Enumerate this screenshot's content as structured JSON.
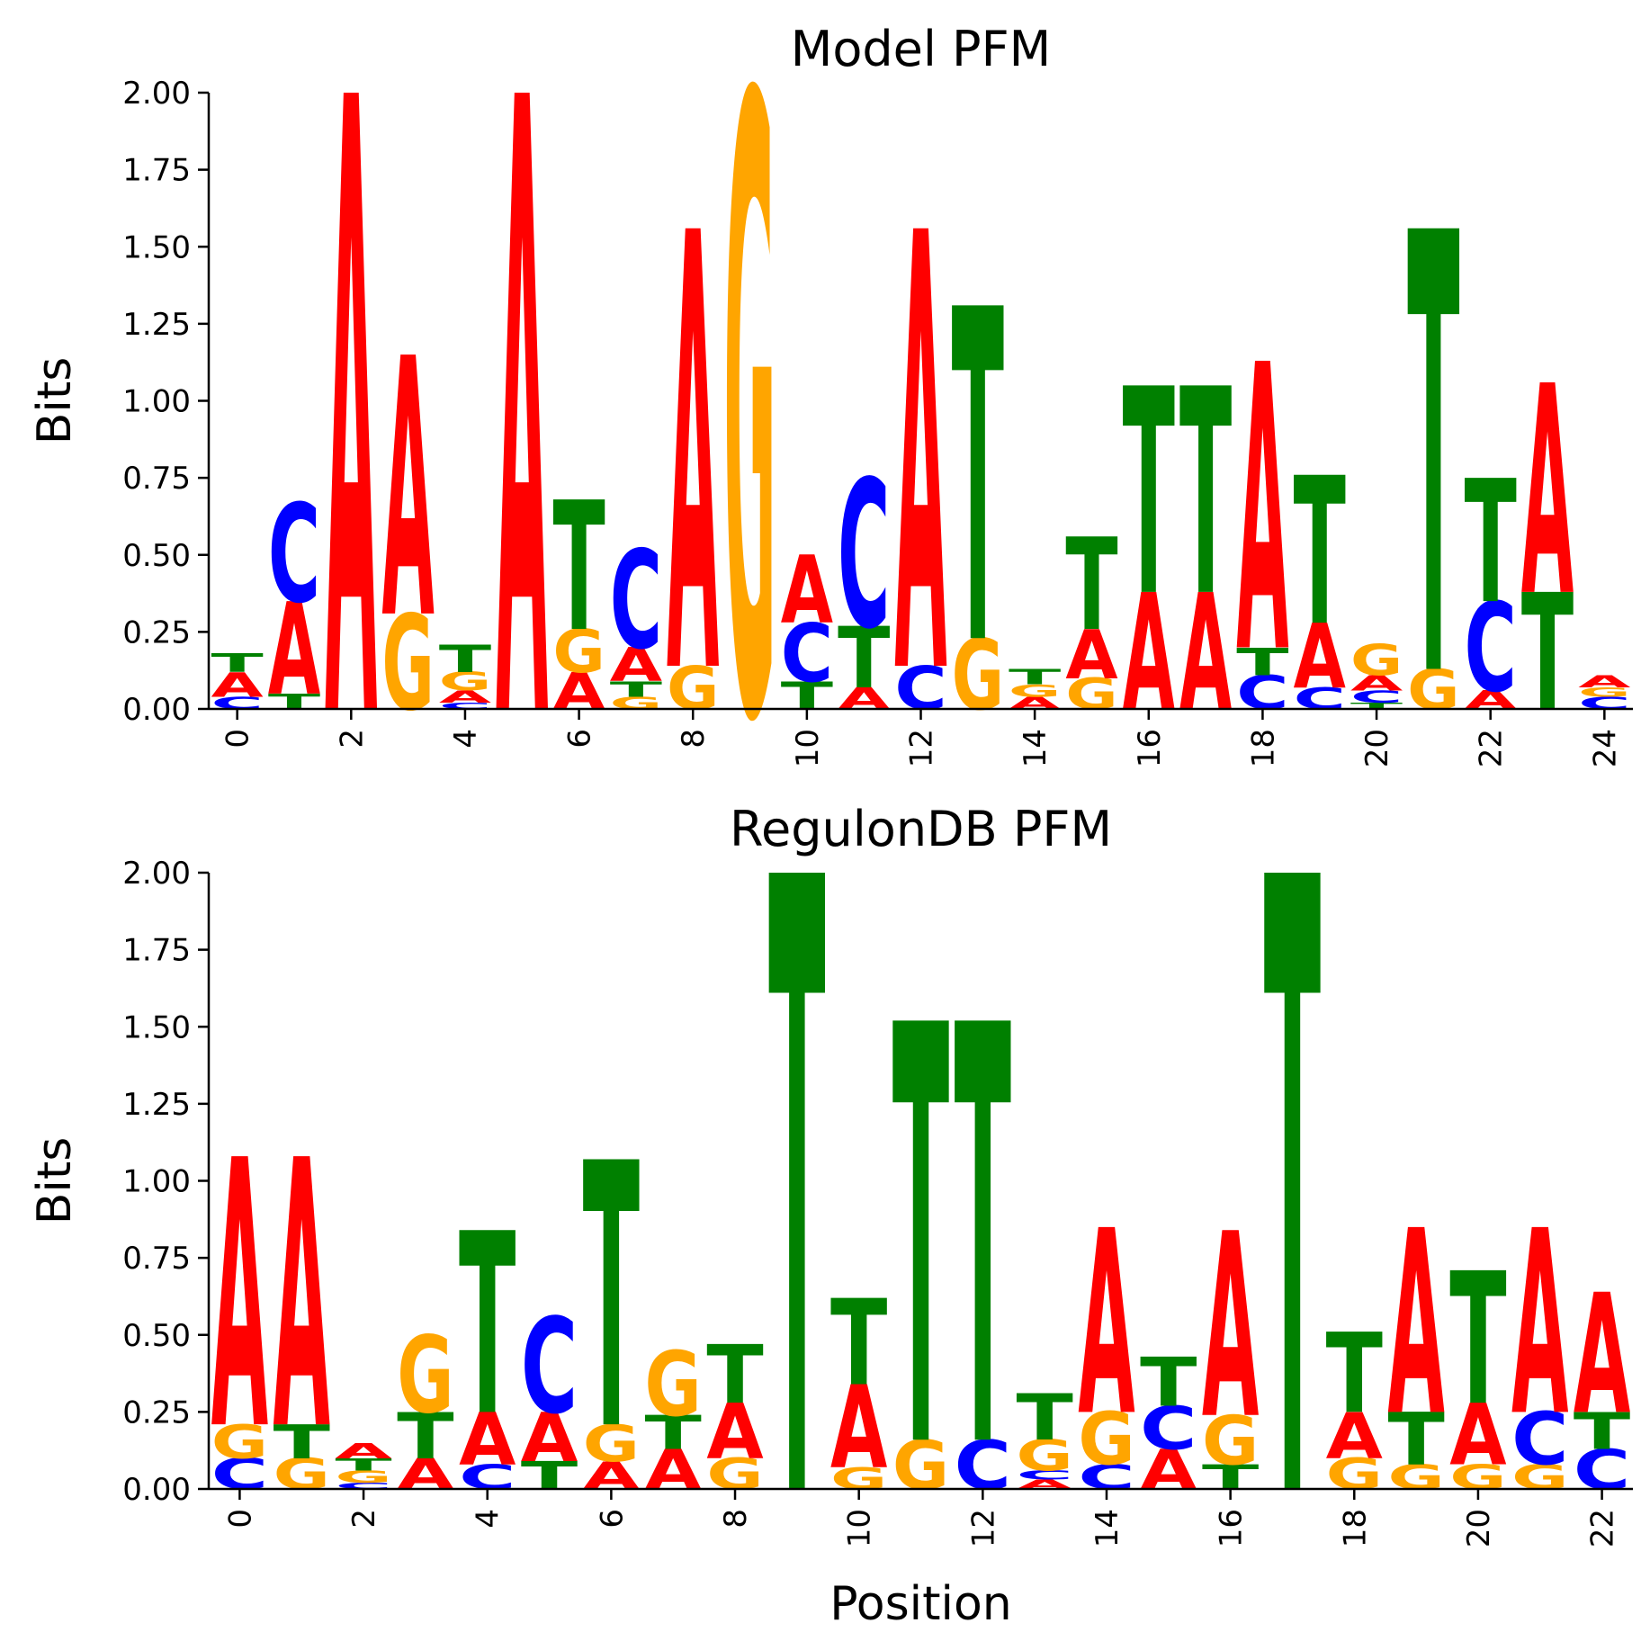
{
  "colors": {
    "A": "#ff0000",
    "C": "#0000ff",
    "G": "#ffa500",
    "T": "#008000"
  },
  "chart_data": [
    {
      "type": "sequence-logo",
      "title": "Model PFM",
      "xlabel": "",
      "ylabel": "Bits",
      "ylim": [
        0,
        2
      ],
      "yticks": [
        "0.00",
        "0.25",
        "0.50",
        "0.75",
        "1.00",
        "1.25",
        "1.50",
        "1.75",
        "2.00"
      ],
      "xticks": [
        "0",
        "2",
        "4",
        "6",
        "8",
        "10",
        "12",
        "14",
        "16",
        "18",
        "20",
        "22",
        "24"
      ],
      "xlim": [
        -0.5,
        24.5
      ],
      "positions": [
        [
          [
            "C",
            0.04
          ],
          [
            "A",
            0.08
          ],
          [
            "T",
            0.06
          ]
        ],
        [
          [
            "T",
            0.05
          ],
          [
            "A",
            0.3
          ],
          [
            "C",
            0.32
          ]
        ],
        [
          [
            "A",
            2.0
          ]
        ],
        [
          [
            "G",
            0.31
          ],
          [
            "A",
            0.84
          ]
        ],
        [
          [
            "C",
            0.02
          ],
          [
            "A",
            0.04
          ],
          [
            "G",
            0.06
          ],
          [
            "T",
            0.09
          ]
        ],
        [
          [
            "A",
            2.0
          ]
        ],
        [
          [
            "A",
            0.12
          ],
          [
            "G",
            0.14
          ],
          [
            "T",
            0.42
          ]
        ],
        [
          [
            "G",
            0.04
          ],
          [
            "T",
            0.05
          ],
          [
            "A",
            0.11
          ],
          [
            "C",
            0.32
          ]
        ],
        [
          [
            "G",
            0.14
          ],
          [
            "A",
            1.42
          ]
        ],
        [
          [
            "G",
            2.0
          ]
        ],
        [
          [
            "T",
            0.09
          ],
          [
            "C",
            0.19
          ],
          [
            "A",
            0.22
          ]
        ],
        [
          [
            "A",
            0.07
          ],
          [
            "T",
            0.2
          ],
          [
            "C",
            0.48
          ]
        ],
        [
          [
            "C",
            0.14
          ],
          [
            "A",
            1.42
          ]
        ],
        [
          [
            "G",
            0.23
          ],
          [
            "T",
            1.08
          ]
        ],
        [
          [
            "A",
            0.04
          ],
          [
            "G",
            0.04
          ],
          [
            "T",
            0.05
          ]
        ],
        [
          [
            "G",
            0.1
          ],
          [
            "A",
            0.16
          ],
          [
            "T",
            0.3
          ]
        ],
        [
          [
            "A",
            0.38
          ],
          [
            "T",
            0.67
          ]
        ],
        [
          [
            "A",
            0.38
          ],
          [
            "T",
            0.67
          ]
        ],
        [
          [
            "C",
            0.11
          ],
          [
            "T",
            0.09
          ],
          [
            "A",
            0.93
          ]
        ],
        [
          [
            "C",
            0.07
          ],
          [
            "A",
            0.21
          ],
          [
            "T",
            0.48
          ]
        ],
        [
          [
            "T",
            0.02
          ],
          [
            "C",
            0.04
          ],
          [
            "A",
            0.05
          ],
          [
            "G",
            0.1
          ]
        ],
        [
          [
            "G",
            0.13
          ],
          [
            "T",
            1.43
          ]
        ],
        [
          [
            "A",
            0.06
          ],
          [
            "C",
            0.29
          ],
          [
            "T",
            0.4
          ]
        ],
        [
          [
            "T",
            0.38
          ],
          [
            "A",
            0.68
          ]
        ],
        [
          [
            "C",
            0.04
          ],
          [
            "G",
            0.03
          ],
          [
            "A",
            0.04
          ]
        ]
      ]
    },
    {
      "type": "sequence-logo",
      "title": "RegulonDB PFM",
      "xlabel": "Position",
      "ylabel": "Bits",
      "ylim": [
        0,
        2
      ],
      "yticks": [
        "0.00",
        "0.25",
        "0.50",
        "0.75",
        "1.00",
        "1.25",
        "1.50",
        "1.75",
        "2.00"
      ],
      "xticks": [
        "0",
        "2",
        "4",
        "6",
        "8",
        "10",
        "12",
        "14",
        "16",
        "18",
        "20",
        "22"
      ],
      "xlim": [
        -0.5,
        22.5
      ],
      "positions": [
        [
          [
            "C",
            0.1
          ],
          [
            "G",
            0.11
          ],
          [
            "A",
            0.87
          ]
        ],
        [
          [
            "G",
            0.1
          ],
          [
            "T",
            0.11
          ],
          [
            "A",
            0.87
          ]
        ],
        [
          [
            "C",
            0.02
          ],
          [
            "G",
            0.04
          ],
          [
            "T",
            0.04
          ],
          [
            "A",
            0.05
          ]
        ],
        [
          [
            "A",
            0.1
          ],
          [
            "T",
            0.15
          ],
          [
            "G",
            0.25
          ]
        ],
        [
          [
            "C",
            0.08
          ],
          [
            "A",
            0.17
          ],
          [
            "T",
            0.59
          ]
        ],
        [
          [
            "T",
            0.09
          ],
          [
            "A",
            0.16
          ],
          [
            "C",
            0.31
          ]
        ],
        [
          [
            "A",
            0.09
          ],
          [
            "G",
            0.12
          ],
          [
            "T",
            0.86
          ]
        ],
        [
          [
            "A",
            0.13
          ],
          [
            "T",
            0.11
          ],
          [
            "G",
            0.21
          ]
        ],
        [
          [
            "G",
            0.1
          ],
          [
            "A",
            0.18
          ],
          [
            "T",
            0.19
          ]
        ],
        [
          [
            "T",
            2.0
          ]
        ],
        [
          [
            "G",
            0.07
          ],
          [
            "A",
            0.27
          ],
          [
            "T",
            0.28
          ]
        ],
        [
          [
            "G",
            0.16
          ],
          [
            "T",
            1.36
          ]
        ],
        [
          [
            "C",
            0.16
          ],
          [
            "T",
            1.36
          ]
        ],
        [
          [
            "A",
            0.03
          ],
          [
            "C",
            0.03
          ],
          [
            "G",
            0.1
          ],
          [
            "T",
            0.15
          ]
        ],
        [
          [
            "C",
            0.08
          ],
          [
            "G",
            0.17
          ],
          [
            "A",
            0.6
          ]
        ],
        [
          [
            "A",
            0.13
          ],
          [
            "C",
            0.14
          ],
          [
            "T",
            0.16
          ]
        ],
        [
          [
            "T",
            0.08
          ],
          [
            "G",
            0.16
          ],
          [
            "A",
            0.6
          ]
        ],
        [
          [
            "T",
            2.0
          ]
        ],
        [
          [
            "G",
            0.1
          ],
          [
            "A",
            0.15
          ],
          [
            "T",
            0.26
          ]
        ],
        [
          [
            "G",
            0.08
          ],
          [
            "T",
            0.17
          ],
          [
            "A",
            0.6
          ]
        ],
        [
          [
            "G",
            0.08
          ],
          [
            "A",
            0.2
          ],
          [
            "T",
            0.43
          ]
        ],
        [
          [
            "G",
            0.08
          ],
          [
            "C",
            0.17
          ],
          [
            "A",
            0.6
          ]
        ],
        [
          [
            "C",
            0.13
          ],
          [
            "T",
            0.12
          ],
          [
            "A",
            0.39
          ]
        ]
      ]
    }
  ]
}
